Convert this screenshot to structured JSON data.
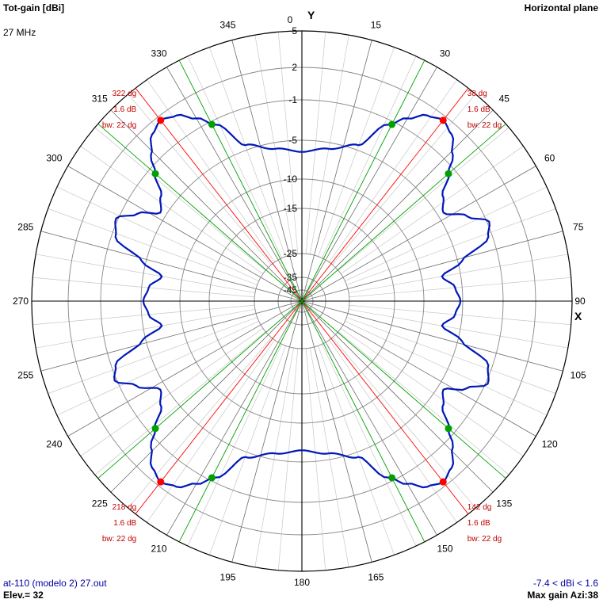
{
  "header": {
    "title": "Tot-gain [dBi]",
    "frequency": "27 MHz",
    "plane": "Horizontal plane"
  },
  "footer": {
    "file": "at-110 (modelo 2) 27.out",
    "elevation": "Elev.= 32",
    "range": "-7.4 < dBi < 1.6",
    "max_gain": "Max gain Azi:38"
  },
  "chart_data": {
    "type": "polar-line",
    "angular_unit": "deg",
    "angle_ticks": [
      0,
      15,
      30,
      45,
      60,
      75,
      90,
      105,
      120,
      135,
      150,
      165,
      180,
      195,
      210,
      225,
      240,
      255,
      270,
      285,
      300,
      315,
      330,
      345
    ],
    "axis_labels": {
      "y": "Y",
      "x": "X"
    },
    "radial_ticks": [
      5,
      2,
      -1,
      -5,
      -10,
      -15,
      -25,
      -35,
      -45
    ],
    "colors": {
      "pattern": "#0018b8",
      "max_marker": "#ff0000",
      "bw_marker": "#00a000",
      "annotation": "#c00000",
      "grid": "#c8c8c8",
      "ring": "#888888"
    },
    "series": [
      {
        "azimuth": [
          0,
          10,
          20,
          26,
          30,
          34,
          38,
          42,
          46,
          49,
          53,
          58,
          63,
          67,
          71,
          76,
          80,
          85,
          90,
          95,
          100,
          104,
          109,
          114,
          118,
          122,
          127,
          131,
          134,
          138,
          142,
          146,
          150,
          154,
          160,
          170,
          180,
          190,
          200,
          206,
          210,
          214,
          218,
          222,
          226,
          229,
          233,
          238,
          243,
          247,
          251,
          256,
          260,
          265,
          270,
          275,
          280,
          284,
          289,
          294,
          298,
          302,
          307,
          311,
          314,
          318,
          322,
          326,
          330,
          334,
          340,
          350
        ],
        "gain": [
          -6.5,
          -5.8,
          -4.5,
          -1.5,
          -0.1,
          1.1,
          1.6,
          1.1,
          -0.2,
          -1.7,
          -3.5,
          -4.4,
          -2.5,
          -0.8,
          -1.4,
          -4.6,
          -7.4,
          -5.9,
          -5.3,
          -5.9,
          -7.4,
          -4.6,
          -1.4,
          -0.8,
          -2.5,
          -4.4,
          -3.5,
          -1.7,
          -0.2,
          1.1,
          1.6,
          1.1,
          -0.1,
          -1.5,
          -4.5,
          -5.8,
          -6.5,
          -5.8,
          -4.5,
          -1.5,
          -0.1,
          1.1,
          1.6,
          1.1,
          -0.2,
          -1.7,
          -3.5,
          -4.4,
          -2.5,
          -0.8,
          -1.4,
          -4.6,
          -7.4,
          -5.9,
          -5.3,
          -5.9,
          -7.4,
          -4.6,
          -1.4,
          -0.8,
          -2.5,
          -4.4,
          -3.5,
          -1.7,
          -0.2,
          1.1,
          1.6,
          1.1,
          -0.1,
          -1.5,
          -4.5,
          -5.8
        ]
      }
    ],
    "lobes": [
      {
        "azimuth": 38,
        "bw_limits": [
          27,
          49
        ],
        "labels": [
          "38 dg",
          "1.6 dB",
          "bw: 22 dg"
        ]
      },
      {
        "azimuth": 142,
        "bw_limits": [
          131,
          153
        ],
        "labels": [
          "142 dg",
          "1.6 dB",
          "bw: 22 dg"
        ]
      },
      {
        "azimuth": 218,
        "bw_limits": [
          207,
          229
        ],
        "labels": [
          "218 dg",
          "1.6 dB",
          "bw: 22 dg"
        ]
      },
      {
        "azimuth": 322,
        "bw_limits": [
          311,
          333
        ],
        "labels": [
          "322 dg",
          "1.6 dB",
          "bw: 22 dg"
        ]
      }
    ]
  }
}
